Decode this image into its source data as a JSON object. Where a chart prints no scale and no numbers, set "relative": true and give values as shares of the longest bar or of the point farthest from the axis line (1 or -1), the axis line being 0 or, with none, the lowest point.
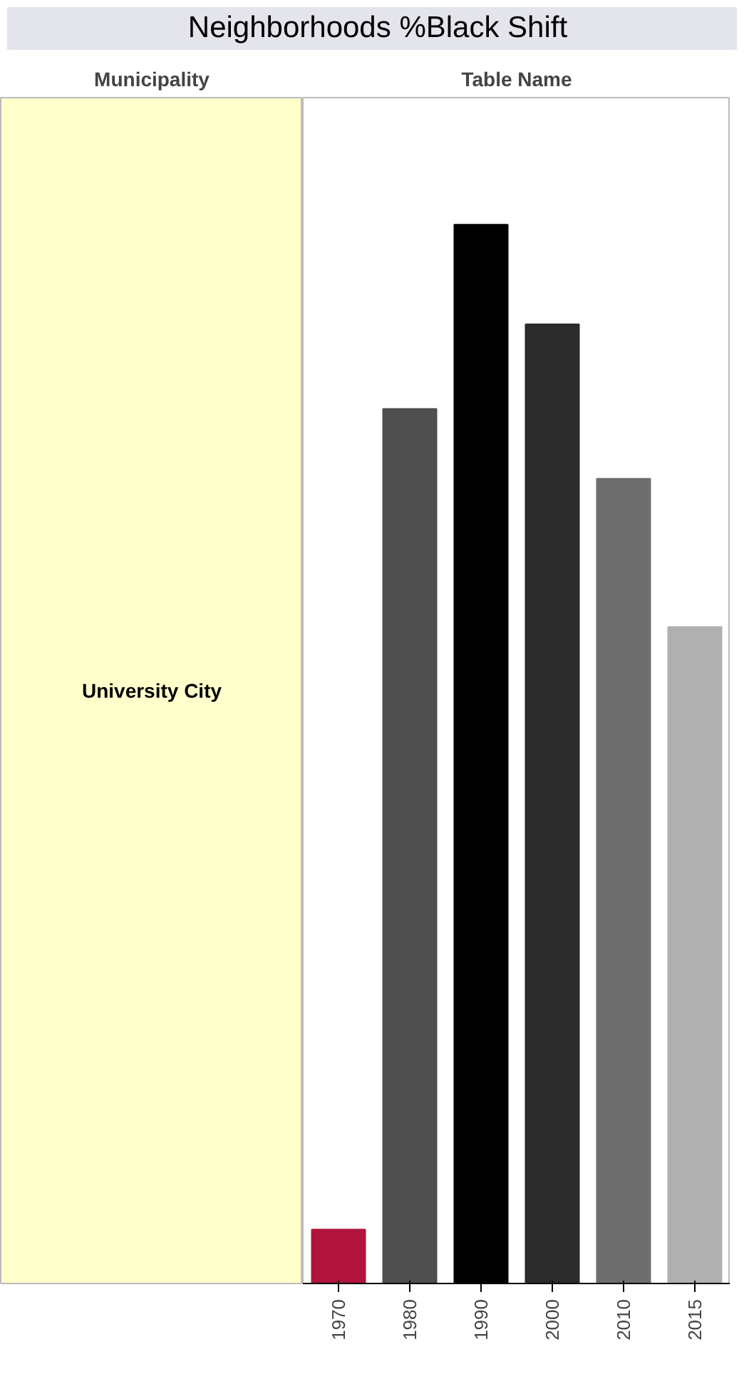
{
  "chart_data": {
    "type": "bar",
    "title": "Neighborhoods %Black Shift",
    "annotations": [
      "Municipality",
      "Table Name",
      "University City"
    ],
    "categories": [
      "1970",
      "1980",
      "1990",
      "2000",
      "2010",
      "2015"
    ],
    "values": [
      0.051,
      0.826,
      1,
      0.906,
      0.76,
      0.62
    ],
    "colors": [
      "#b0143c",
      "#4f4f4f",
      "#000000",
      "#2b2b2b",
      "#6e6e6e",
      "#b0b0b0"
    ],
    "relative": true,
    "grid": false
  }
}
